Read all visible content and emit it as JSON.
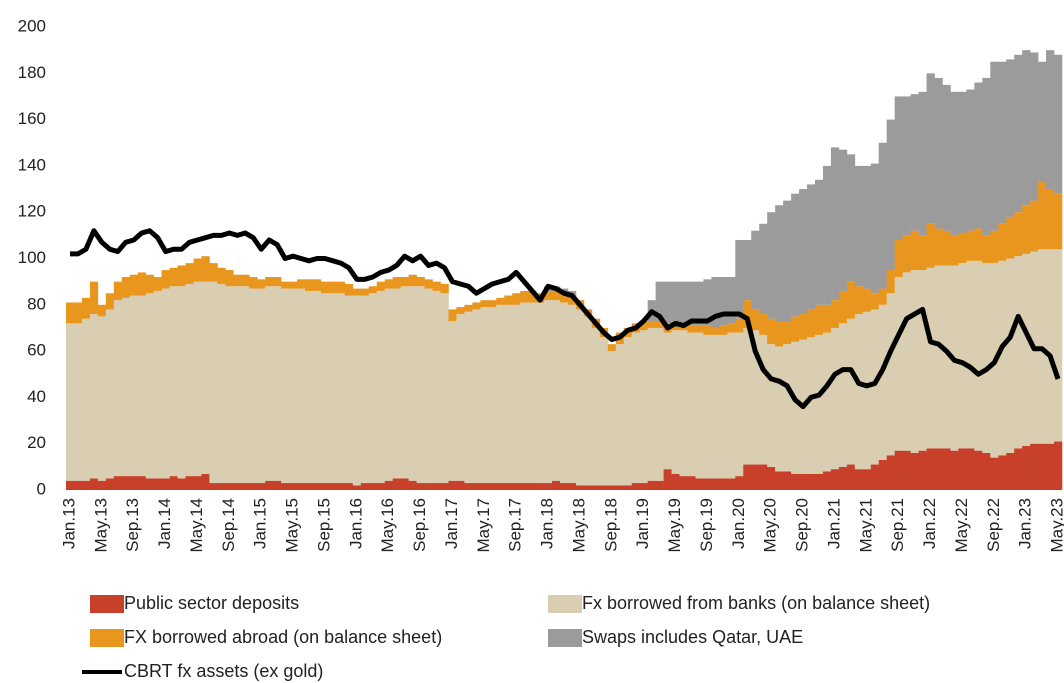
{
  "chart_data": {
    "type": "bar",
    "stacked": true,
    "categories": [
      "Jan.13",
      null,
      null,
      null,
      "May.13",
      null,
      null,
      null,
      "Sep.13",
      null,
      null,
      null,
      "Jan.14",
      null,
      null,
      null,
      "May.14",
      null,
      null,
      null,
      "Sep.14",
      null,
      null,
      null,
      "Jan.15",
      null,
      null,
      null,
      "May.15",
      null,
      null,
      null,
      "Sep.15",
      null,
      null,
      null,
      "Jan.16",
      null,
      null,
      null,
      "May.16",
      null,
      null,
      null,
      "Sep.16",
      null,
      null,
      null,
      "Jan.17",
      null,
      null,
      null,
      "May.17",
      null,
      null,
      null,
      "Sep.17",
      null,
      null,
      null,
      "Jan.18",
      null,
      null,
      null,
      "May.18",
      null,
      null,
      null,
      "Sep.18",
      null,
      null,
      null,
      "Jan.19",
      null,
      null,
      null,
      "May.19",
      null,
      null,
      null,
      "Sep.19",
      null,
      null,
      null,
      "Jan.20",
      null,
      null,
      null,
      "May.20",
      null,
      null,
      null,
      "Sep.20",
      null,
      null,
      null,
      "Jan.21",
      null,
      null,
      null,
      "May.21",
      null,
      null,
      null,
      "Sep.21",
      null,
      null,
      null,
      "Jan.22",
      null,
      null,
      null,
      "May.22",
      null,
      null,
      null,
      "Sep.22",
      null,
      null,
      null,
      "Jan.23",
      null,
      null,
      null,
      "May.23"
    ],
    "series": [
      {
        "name": "Public sector deposits",
        "color": "#c8402a",
        "type": "bar",
        "values": [
          4,
          4,
          4,
          5,
          4,
          5,
          6,
          6,
          6,
          6,
          5,
          5,
          5,
          6,
          5,
          6,
          6,
          7,
          3,
          3,
          3,
          3,
          3,
          3,
          3,
          4,
          4,
          3,
          3,
          3,
          3,
          3,
          3,
          3,
          3,
          3,
          2,
          3,
          3,
          3,
          4,
          5,
          5,
          4,
          3,
          3,
          3,
          3,
          4,
          4,
          3,
          3,
          3,
          3,
          3,
          3,
          3,
          3,
          3,
          3,
          3,
          4,
          3,
          3,
          2,
          2,
          2,
          2,
          2,
          2,
          2,
          3,
          3,
          4,
          4,
          9,
          7,
          6,
          6,
          5,
          5,
          5,
          5,
          5,
          6,
          11,
          11,
          11,
          10,
          8,
          8,
          7,
          7,
          7,
          7,
          8,
          9,
          10,
          11,
          9,
          9,
          11,
          13,
          15,
          17,
          17,
          16,
          17,
          18,
          18,
          18,
          17,
          18,
          18,
          17,
          16,
          14,
          15,
          16,
          18,
          19,
          20,
          20,
          20,
          21
        ]
      },
      {
        "name": "Fx borrowed from banks (on balance sheet)",
        "color": "#d9cdb2",
        "type": "bar",
        "values": [
          68,
          68,
          70,
          71,
          71,
          73,
          76,
          77,
          78,
          78,
          80,
          81,
          82,
          82,
          83,
          83,
          84,
          83,
          87,
          86,
          85,
          85,
          85,
          84,
          84,
          84,
          84,
          84,
          84,
          84,
          83,
          83,
          82,
          82,
          82,
          81,
          82,
          81,
          82,
          83,
          83,
          82,
          83,
          84,
          85,
          84,
          83,
          82,
          69,
          72,
          74,
          75,
          76,
          76,
          77,
          77,
          77,
          78,
          78,
          78,
          79,
          78,
          78,
          77,
          76,
          73,
          68,
          64,
          58,
          61,
          64,
          65,
          66,
          66,
          66,
          59,
          62,
          63,
          62,
          63,
          62,
          62,
          62,
          63,
          62,
          59,
          58,
          56,
          53,
          54,
          55,
          57,
          58,
          59,
          60,
          60,
          61,
          62,
          63,
          67,
          68,
          67,
          67,
          70,
          75,
          77,
          79,
          78,
          78,
          79,
          79,
          80,
          80,
          81,
          82,
          82,
          84,
          84,
          84,
          83,
          83,
          83,
          84,
          84,
          83
        ]
      },
      {
        "name": "FX borrowed abroad (on balance sheet)",
        "color": "#e8961e",
        "type": "bar",
        "values": [
          9,
          9,
          9,
          14,
          5,
          7,
          8,
          9,
          9,
          10,
          8,
          6,
          8,
          8,
          9,
          9,
          10,
          11,
          8,
          7,
          7,
          5,
          5,
          5,
          4,
          4,
          4,
          3,
          3,
          4,
          5,
          5,
          5,
          5,
          5,
          5,
          3,
          3,
          3,
          4,
          4,
          5,
          4,
          5,
          4,
          4,
          4,
          4,
          5,
          3,
          3,
          3,
          3,
          3,
          3,
          4,
          5,
          5,
          5,
          4,
          4,
          4,
          4,
          4,
          4,
          3,
          4,
          4,
          3,
          5,
          4,
          4,
          4,
          3,
          3,
          4,
          4,
          3,
          3,
          3,
          4,
          3,
          4,
          4,
          6,
          12,
          9,
          9,
          11,
          11,
          10,
          11,
          11,
          12,
          13,
          12,
          12,
          14,
          16,
          12,
          10,
          7,
          7,
          10,
          16,
          16,
          17,
          15,
          19,
          16,
          15,
          13,
          13,
          13,
          14,
          12,
          14,
          16,
          18,
          19,
          21,
          22,
          29,
          26,
          24
        ]
      },
      {
        "name": "Swaps includes Qatar, UAE",
        "color": "#9b9b9b",
        "type": "bar",
        "values": [
          0,
          0,
          0,
          0,
          0,
          0,
          0,
          0,
          0,
          0,
          0,
          0,
          0,
          0,
          0,
          0,
          0,
          0,
          0,
          0,
          0,
          0,
          0,
          0,
          0,
          0,
          0,
          0,
          0,
          0,
          0,
          0,
          0,
          0,
          0,
          0,
          0,
          0,
          0,
          0,
          0,
          0,
          0,
          0,
          0,
          0,
          0,
          0,
          0,
          0,
          0,
          0,
          0,
          0,
          0,
          0,
          0,
          0,
          0,
          0,
          2,
          2,
          2,
          2,
          0,
          0,
          0,
          0,
          0,
          0,
          0,
          0,
          0,
          9,
          17,
          18,
          17,
          18,
          19,
          19,
          20,
          22,
          21,
          20,
          34,
          26,
          34,
          39,
          46,
          50,
          52,
          53,
          54,
          54,
          54,
          60,
          66,
          61,
          55,
          52,
          53,
          56,
          63,
          65,
          62,
          60,
          59,
          62,
          65,
          65,
          63,
          62,
          61,
          61,
          63,
          68,
          73,
          70,
          68,
          68,
          67,
          64,
          52,
          60,
          60
        ]
      },
      {
        "name": "CBRT fx assets (ex gold)",
        "color": "#000000",
        "type": "line",
        "values": [
          102,
          102,
          104,
          112,
          107,
          104,
          103,
          107,
          108,
          111,
          112,
          109,
          103,
          104,
          104,
          107,
          108,
          109,
          110,
          110,
          111,
          110,
          111,
          109,
          104,
          108,
          106,
          100,
          101,
          100,
          99,
          100,
          100,
          99,
          98,
          96,
          91,
          91,
          92,
          94,
          95,
          97,
          101,
          99,
          101,
          97,
          98,
          96,
          90,
          89,
          88,
          85,
          87,
          89,
          90,
          91,
          94,
          90,
          86,
          82,
          88,
          87,
          85,
          84,
          80,
          76,
          72,
          68,
          65,
          66,
          69,
          70,
          73,
          77,
          75,
          70,
          72,
          71,
          73,
          73,
          73,
          75,
          76,
          76,
          76,
          74,
          60,
          52,
          48,
          47,
          45,
          39,
          36,
          40,
          41,
          45,
          50,
          52,
          52,
          46,
          45,
          46,
          52,
          60,
          67,
          74,
          76,
          78,
          64,
          63,
          60,
          56,
          55,
          53,
          50,
          52,
          55,
          62,
          66,
          75,
          68,
          61,
          61,
          58,
          48
        ]
      }
    ],
    "ylim": [
      0,
      200
    ],
    "yticks": [
      0,
      20,
      40,
      60,
      80,
      100,
      120,
      140,
      160,
      180,
      200
    ],
    "grid": false
  }
}
